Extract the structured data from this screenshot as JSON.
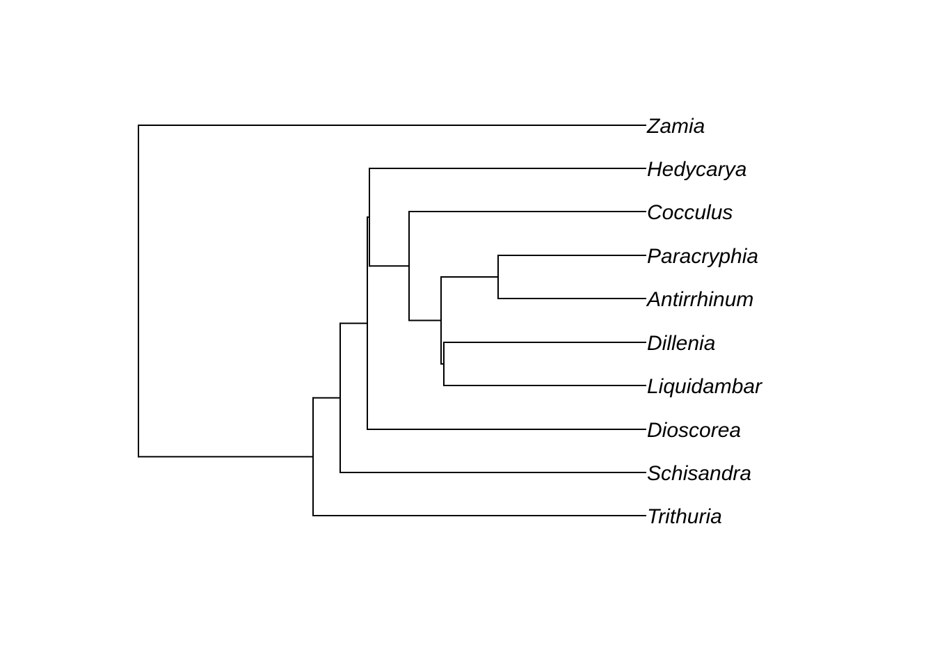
{
  "tree": {
    "type": "phylogram",
    "line_color": "#000000",
    "tips": [
      "Zamia",
      "Hedycarya",
      "Cocculus",
      "Paracryphia",
      "Antirrhinum",
      "Dillenia",
      "Liquidambar",
      "Dioscorea",
      "Schisandra",
      "Trithuria"
    ],
    "newick": "(Zamia,((((Hedycarya,(Cocculus,((Paracryphia,Antirrhinum),(Dillenia,Liquidambar)))),Dioscorea),Schisandra),Trithuria));"
  }
}
